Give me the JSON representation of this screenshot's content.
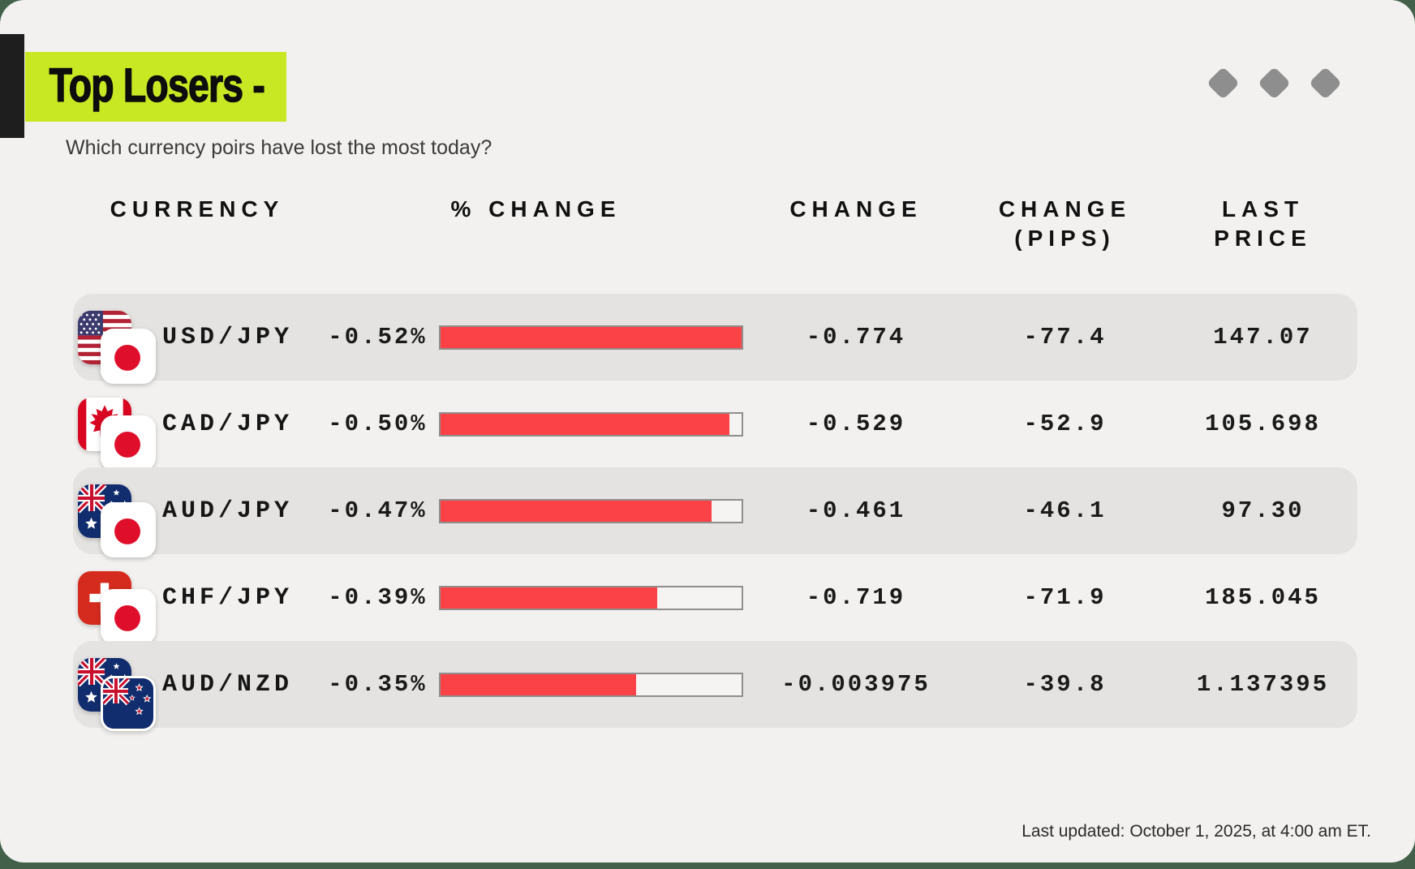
{
  "title": "Top Losers -",
  "subtitle": "Which currency poirs have lost the most today?",
  "footer": "Last updated: October 1, 2025, at 4:00 am ET.",
  "columns": {
    "currency": "CURRENCY",
    "pct_change": "% CHANGE",
    "change": "CHANGE",
    "change_pips": "CHANGE\n(PIPS)",
    "last_price": "LAST PRICE"
  },
  "colors": {
    "accent_yellow": "#c9e824",
    "bar_red": "#fb4247",
    "background_green": "#42604a",
    "row_gray": "#e4e3e1",
    "card_bg": "#f2f1ef",
    "diamond_gray": "#8e8e8e"
  },
  "decor": {
    "diamond_icons": [
      "diamond-icon",
      "diamond-icon",
      "diamond-icon"
    ]
  },
  "rows": [
    {
      "pair": "USD/JPY",
      "pct_change": "-0.52%",
      "bar_pct": 100,
      "change": "-0.774",
      "change_pips": "-77.4",
      "last_price": "147.07",
      "flags": {
        "base": "us-flag",
        "quote": "jp-flag"
      }
    },
    {
      "pair": "CAD/JPY",
      "pct_change": "-0.50%",
      "bar_pct": 96,
      "change": "-0.529",
      "change_pips": "-52.9",
      "last_price": "105.698",
      "flags": {
        "base": "ca-flag",
        "quote": "jp-flag"
      }
    },
    {
      "pair": "AUD/JPY",
      "pct_change": "-0.47%",
      "bar_pct": 90,
      "change": "-0.461",
      "change_pips": "-46.1",
      "last_price": "97.30",
      "flags": {
        "base": "au-flag",
        "quote": "jp-flag"
      }
    },
    {
      "pair": "CHF/JPY",
      "pct_change": "-0.39%",
      "bar_pct": 72,
      "change": "-0.719",
      "change_pips": "-71.9",
      "last_price": "185.045",
      "flags": {
        "base": "ch-flag",
        "quote": "jp-flag"
      }
    },
    {
      "pair": "AUD/NZD",
      "pct_change": "-0.35%",
      "bar_pct": 65,
      "change": "-0.003975",
      "change_pips": "-39.8",
      "last_price": "1.137395",
      "flags": {
        "base": "au-flag",
        "quote": "nz-flag"
      }
    }
  ],
  "chart_data": {
    "type": "table",
    "title": "Top Losers -",
    "subtitle": "Which currency poirs have lost the most today?",
    "columns": [
      "CURRENCY",
      "% CHANGE",
      "CHANGE",
      "CHANGE (PIPS)",
      "LAST PRICE"
    ],
    "rows": [
      [
        "USD/JPY",
        "-0.52%",
        "-0.774",
        "-77.4",
        "147.07"
      ],
      [
        "CAD/JPY",
        "-0.50%",
        "-0.529",
        "-52.9",
        "105.698"
      ],
      [
        "AUD/JPY",
        "-0.47%",
        "-0.461",
        "-46.1",
        "97.30"
      ],
      [
        "CHF/JPY",
        "-0.39%",
        "-0.719",
        "-71.9",
        "185.045"
      ],
      [
        "AUD/NZD",
        "-0.35%",
        "-0.003975",
        "-39.8",
        "1.137395"
      ]
    ],
    "pct_change_values": [
      -0.52,
      -0.5,
      -0.47,
      -0.39,
      -0.35
    ],
    "bar_fractions_pct": [
      100,
      96,
      90,
      72,
      65
    ],
    "bar_scale_note": "bars scaled relative to largest loss -0.52%",
    "last_updated": "Last updated: October 1, 2025, at 4:00 am ET."
  }
}
